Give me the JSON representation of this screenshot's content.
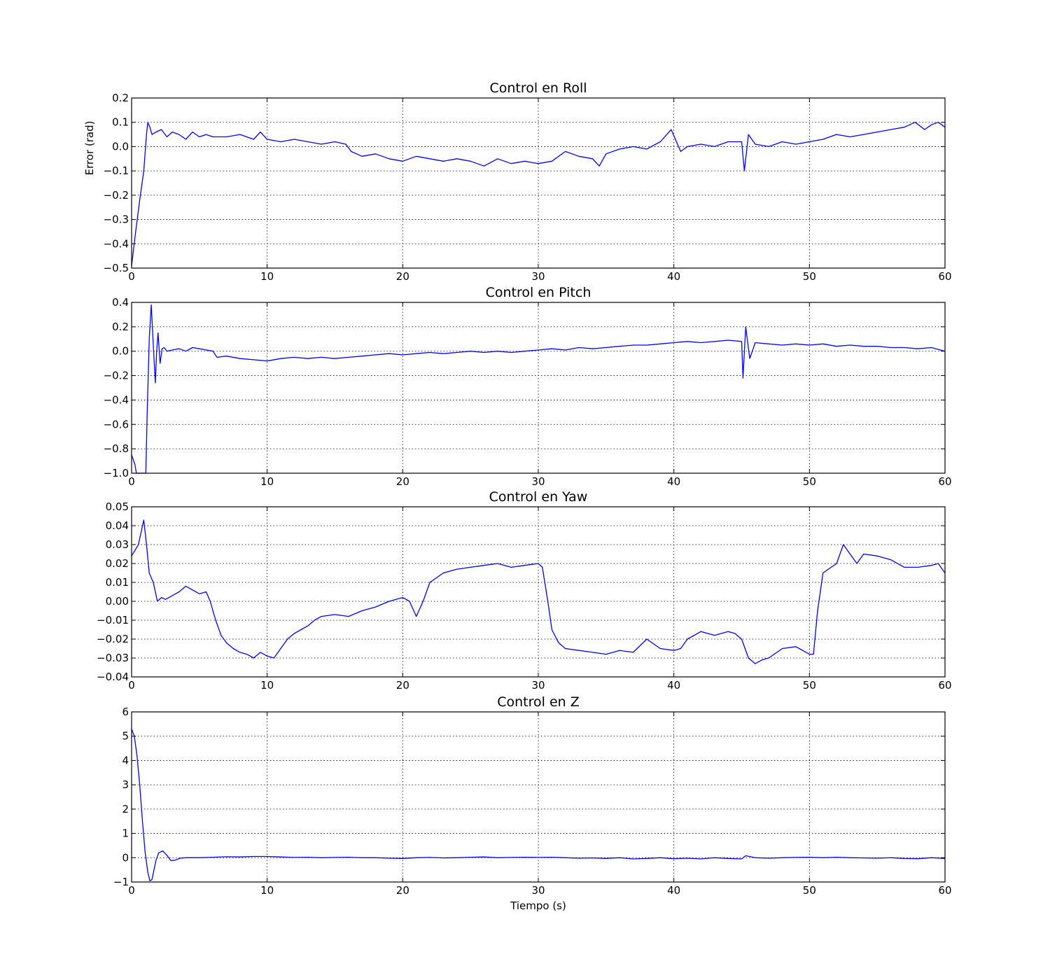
{
  "figure": {
    "xlabel": "Tiempo (s)"
  },
  "colors": {
    "series": "#0000ff",
    "grid": "#000000",
    "background": "#ffffff"
  },
  "chart_data": [
    {
      "type": "line",
      "title": "Control en Roll",
      "xlabel": "",
      "ylabel": "Error (rad)",
      "xlim": [
        0,
        60
      ],
      "ylim": [
        -0.5,
        0.2
      ],
      "grid": true,
      "xticks": [
        0,
        10,
        20,
        30,
        40,
        50,
        60
      ],
      "yticks": [
        -0.5,
        -0.4,
        -0.3,
        -0.2,
        -0.1,
        0.0,
        0.1,
        0.2
      ],
      "xtick_labels": [
        "0",
        "10",
        "20",
        "30",
        "40",
        "50",
        "60"
      ],
      "ytick_labels": [
        "−0.5",
        "−0.4",
        "−0.3",
        "−0.2",
        "−0.1",
        "0.0",
        "0.1",
        "0.2"
      ],
      "series": [
        {
          "x": [
            0,
            0.3,
            0.6,
            0.9,
            1.1,
            1.2,
            1.35,
            1.5,
            1.8,
            2.2,
            2.6,
            3,
            3.5,
            4,
            4.5,
            5,
            5.5,
            6,
            7,
            8,
            9,
            9.5,
            10,
            11,
            12,
            13,
            14,
            15,
            15.8,
            16.2,
            17,
            18,
            19,
            20,
            21,
            22,
            23,
            24,
            25,
            26,
            27,
            28,
            29,
            30,
            31,
            32,
            33,
            34,
            34.5,
            35,
            36,
            37,
            38,
            39,
            39.8,
            40.5,
            41,
            42,
            43,
            44,
            45,
            45.2,
            45.5,
            46,
            47,
            48,
            49,
            50,
            51,
            52,
            53,
            54,
            55,
            56,
            57,
            57.8,
            58.5,
            59,
            59.5,
            60
          ],
          "y": [
            -0.49,
            -0.35,
            -0.22,
            -0.1,
            0.05,
            0.1,
            0.08,
            0.05,
            0.06,
            0.07,
            0.04,
            0.06,
            0.05,
            0.03,
            0.06,
            0.04,
            0.05,
            0.04,
            0.04,
            0.05,
            0.03,
            0.06,
            0.03,
            0.02,
            0.03,
            0.02,
            0.01,
            0.02,
            0.01,
            -0.02,
            -0.04,
            -0.03,
            -0.05,
            -0.06,
            -0.04,
            -0.05,
            -0.06,
            -0.05,
            -0.06,
            -0.08,
            -0.05,
            -0.07,
            -0.06,
            -0.07,
            -0.06,
            -0.02,
            -0.04,
            -0.05,
            -0.08,
            -0.03,
            -0.01,
            0.0,
            -0.01,
            0.02,
            0.07,
            -0.02,
            0.0,
            0.01,
            0.0,
            0.02,
            0.02,
            -0.1,
            0.05,
            0.01,
            0.0,
            0.02,
            0.01,
            0.02,
            0.03,
            0.05,
            0.04,
            0.05,
            0.06,
            0.07,
            0.08,
            0.1,
            0.07,
            0.09,
            0.1,
            0.08
          ]
        }
      ]
    },
    {
      "type": "line",
      "title": "Control en Pitch",
      "xlabel": "",
      "ylabel": "",
      "xlim": [
        0,
        60
      ],
      "ylim": [
        -1.0,
        0.4
      ],
      "grid": true,
      "xticks": [
        0,
        10,
        20,
        30,
        40,
        50,
        60
      ],
      "yticks": [
        -1.0,
        -0.8,
        -0.6,
        -0.4,
        -0.2,
        0.0,
        0.2,
        0.4
      ],
      "xtick_labels": [
        "0",
        "10",
        "20",
        "30",
        "40",
        "50",
        "60"
      ],
      "ytick_labels": [
        "−1.0",
        "−0.8",
        "−0.6",
        "−0.4",
        "−0.2",
        "0.0",
        "0.2",
        "0.4"
      ],
      "series": [
        {
          "x": [
            0,
            0.25,
            0.35,
            0.7,
            1.05,
            1.15,
            1.3,
            1.45,
            1.6,
            1.75,
            1.85,
            1.95,
            2.1,
            2.25,
            2.4,
            2.6,
            3,
            3.5,
            4,
            4.5,
            5,
            5.5,
            6,
            6.3,
            7,
            8,
            9,
            10,
            11,
            12,
            13,
            14,
            15,
            16,
            17,
            18,
            19,
            20,
            21,
            22,
            23,
            24,
            25,
            26,
            27,
            28,
            29,
            30,
            31,
            32,
            33,
            34,
            35,
            36,
            37,
            38,
            39,
            40,
            41,
            42,
            43,
            44,
            45,
            45.1,
            45.3,
            45.6,
            46,
            47,
            48,
            49,
            50,
            51,
            52,
            53,
            54,
            55,
            56,
            57,
            58,
            59,
            60
          ],
          "y": [
            -0.85,
            -0.93,
            -1.0,
            -1.0,
            -1.0,
            -0.5,
            0.1,
            0.38,
            0.05,
            -0.26,
            0.0,
            0.15,
            -0.1,
            0.02,
            0.03,
            0.0,
            0.01,
            0.02,
            0.0,
            0.03,
            0.02,
            0.01,
            0.0,
            -0.05,
            -0.04,
            -0.06,
            -0.07,
            -0.08,
            -0.06,
            -0.05,
            -0.06,
            -0.05,
            -0.06,
            -0.05,
            -0.04,
            -0.03,
            -0.02,
            -0.03,
            -0.02,
            -0.01,
            -0.02,
            -0.01,
            0.0,
            -0.01,
            0.0,
            -0.01,
            0.0,
            0.01,
            0.02,
            0.01,
            0.03,
            0.02,
            0.03,
            0.04,
            0.05,
            0.05,
            0.06,
            0.07,
            0.08,
            0.07,
            0.08,
            0.09,
            0.08,
            -0.22,
            0.2,
            -0.06,
            0.07,
            0.06,
            0.05,
            0.06,
            0.05,
            0.06,
            0.04,
            0.05,
            0.04,
            0.04,
            0.03,
            0.03,
            0.02,
            0.03,
            0.0
          ]
        }
      ]
    },
    {
      "type": "line",
      "title": "Control en Yaw",
      "xlabel": "",
      "ylabel": "",
      "xlim": [
        0,
        60
      ],
      "ylim": [
        -0.04,
        0.05
      ],
      "grid": true,
      "xticks": [
        0,
        10,
        20,
        30,
        40,
        50,
        60
      ],
      "yticks": [
        -0.04,
        -0.03,
        -0.02,
        -0.01,
        0.0,
        0.01,
        0.02,
        0.03,
        0.04,
        0.05
      ],
      "xtick_labels": [
        "0",
        "10",
        "20",
        "30",
        "40",
        "50",
        "60"
      ],
      "ytick_labels": [
        "−0.04",
        "−0.03",
        "−0.02",
        "−0.01",
        "0.00",
        "0.01",
        "0.02",
        "0.03",
        "0.04",
        "0.05"
      ],
      "series": [
        {
          "x": [
            0,
            0.5,
            0.9,
            1.1,
            1.3,
            1.6,
            1.9,
            2.2,
            2.5,
            3,
            3.5,
            4,
            4.5,
            5,
            5.5,
            5.8,
            6.2,
            6.6,
            7,
            7.5,
            8,
            8.5,
            9,
            9.5,
            10,
            10.5,
            11,
            11.5,
            12,
            12.5,
            13,
            13.5,
            14,
            15,
            16,
            17,
            18,
            19,
            20,
            20.5,
            21,
            21.5,
            22,
            23,
            24,
            25,
            26,
            27,
            28,
            29,
            30,
            30.3,
            30.7,
            31,
            31.5,
            32,
            33,
            34,
            35,
            36,
            37,
            38,
            39,
            40,
            40.5,
            41,
            42,
            43,
            44,
            44.5,
            45,
            45.5,
            46,
            46.5,
            47,
            48,
            49,
            50,
            50.3,
            50.6,
            51,
            52,
            52.5,
            53,
            53.5,
            54,
            55,
            56,
            57,
            58,
            59,
            59.5,
            60
          ],
          "y": [
            0.024,
            0.03,
            0.043,
            0.03,
            0.015,
            0.01,
            0.0,
            0.002,
            0.001,
            0.003,
            0.005,
            0.008,
            0.006,
            0.004,
            0.005,
            0.0,
            -0.01,
            -0.018,
            -0.022,
            -0.025,
            -0.027,
            -0.028,
            -0.03,
            -0.027,
            -0.029,
            -0.03,
            -0.025,
            -0.02,
            -0.017,
            -0.015,
            -0.013,
            -0.01,
            -0.008,
            -0.007,
            -0.008,
            -0.005,
            -0.003,
            0.0,
            0.002,
            0.0,
            -0.008,
            0.0,
            0.01,
            0.015,
            0.017,
            0.018,
            0.019,
            0.02,
            0.018,
            0.019,
            0.02,
            0.018,
            0.0,
            -0.015,
            -0.022,
            -0.025,
            -0.026,
            -0.027,
            -0.028,
            -0.026,
            -0.027,
            -0.02,
            -0.025,
            -0.026,
            -0.025,
            -0.02,
            -0.016,
            -0.018,
            -0.016,
            -0.017,
            -0.02,
            -0.03,
            -0.033,
            -0.031,
            -0.03,
            -0.025,
            -0.024,
            -0.028,
            -0.028,
            -0.005,
            0.015,
            0.02,
            0.03,
            0.025,
            0.02,
            0.025,
            0.024,
            0.022,
            0.018,
            0.018,
            0.019,
            0.02,
            0.015
          ]
        }
      ]
    },
    {
      "type": "line",
      "title": "Control en Z",
      "xlabel": "Tiempo (s)",
      "ylabel": "",
      "xlim": [
        0,
        60
      ],
      "ylim": [
        -1,
        6
      ],
      "grid": true,
      "xticks": [
        0,
        10,
        20,
        30,
        40,
        50,
        60
      ],
      "yticks": [
        -1,
        0,
        1,
        2,
        3,
        4,
        5,
        6
      ],
      "xtick_labels": [
        "0",
        "10",
        "20",
        "30",
        "40",
        "50",
        "60"
      ],
      "ytick_labels": [
        "−1",
        "0",
        "1",
        "2",
        "3",
        "4",
        "5",
        "6"
      ],
      "series": [
        {
          "x": [
            0,
            0.2,
            0.4,
            0.6,
            0.8,
            1.0,
            1.2,
            1.35,
            1.5,
            1.65,
            1.8,
            2.0,
            2.3,
            2.6,
            2.9,
            3.2,
            3.6,
            4,
            5,
            6,
            7,
            8,
            9,
            10,
            11,
            12,
            13,
            14,
            15,
            16,
            17,
            18,
            19,
            20,
            21,
            22,
            23,
            24,
            25,
            26,
            27,
            28,
            29,
            30,
            31,
            32,
            33,
            34,
            35,
            36,
            37,
            38,
            39,
            40,
            41,
            42,
            43,
            44,
            45,
            45.3,
            46,
            47,
            48,
            49,
            50,
            51,
            52,
            53,
            54,
            55,
            56,
            57,
            58,
            59,
            60
          ],
          "y": [
            5.3,
            5.0,
            4.2,
            3.0,
            1.5,
            0.2,
            -0.6,
            -0.95,
            -0.9,
            -0.5,
            -0.1,
            0.2,
            0.28,
            0.1,
            -0.12,
            -0.1,
            -0.02,
            0.0,
            0.0,
            0.02,
            0.04,
            0.03,
            0.05,
            0.05,
            0.03,
            0.01,
            0.02,
            0.0,
            0.01,
            0.02,
            0.0,
            0.0,
            -0.02,
            -0.03,
            0.0,
            0.01,
            -0.01,
            0.0,
            0.02,
            0.03,
            0.0,
            0.01,
            0.02,
            0.01,
            0.02,
            0.0,
            -0.02,
            -0.01,
            -0.03,
            0.0,
            -0.05,
            -0.03,
            0.0,
            -0.04,
            -0.02,
            -0.05,
            0.0,
            -0.03,
            -0.05,
            0.08,
            0.0,
            -0.02,
            0.0,
            0.01,
            0.02,
            0.0,
            0.02,
            0.0,
            -0.01,
            -0.02,
            0.0,
            -0.03,
            -0.04,
            0.0,
            -0.03
          ]
        }
      ]
    }
  ]
}
